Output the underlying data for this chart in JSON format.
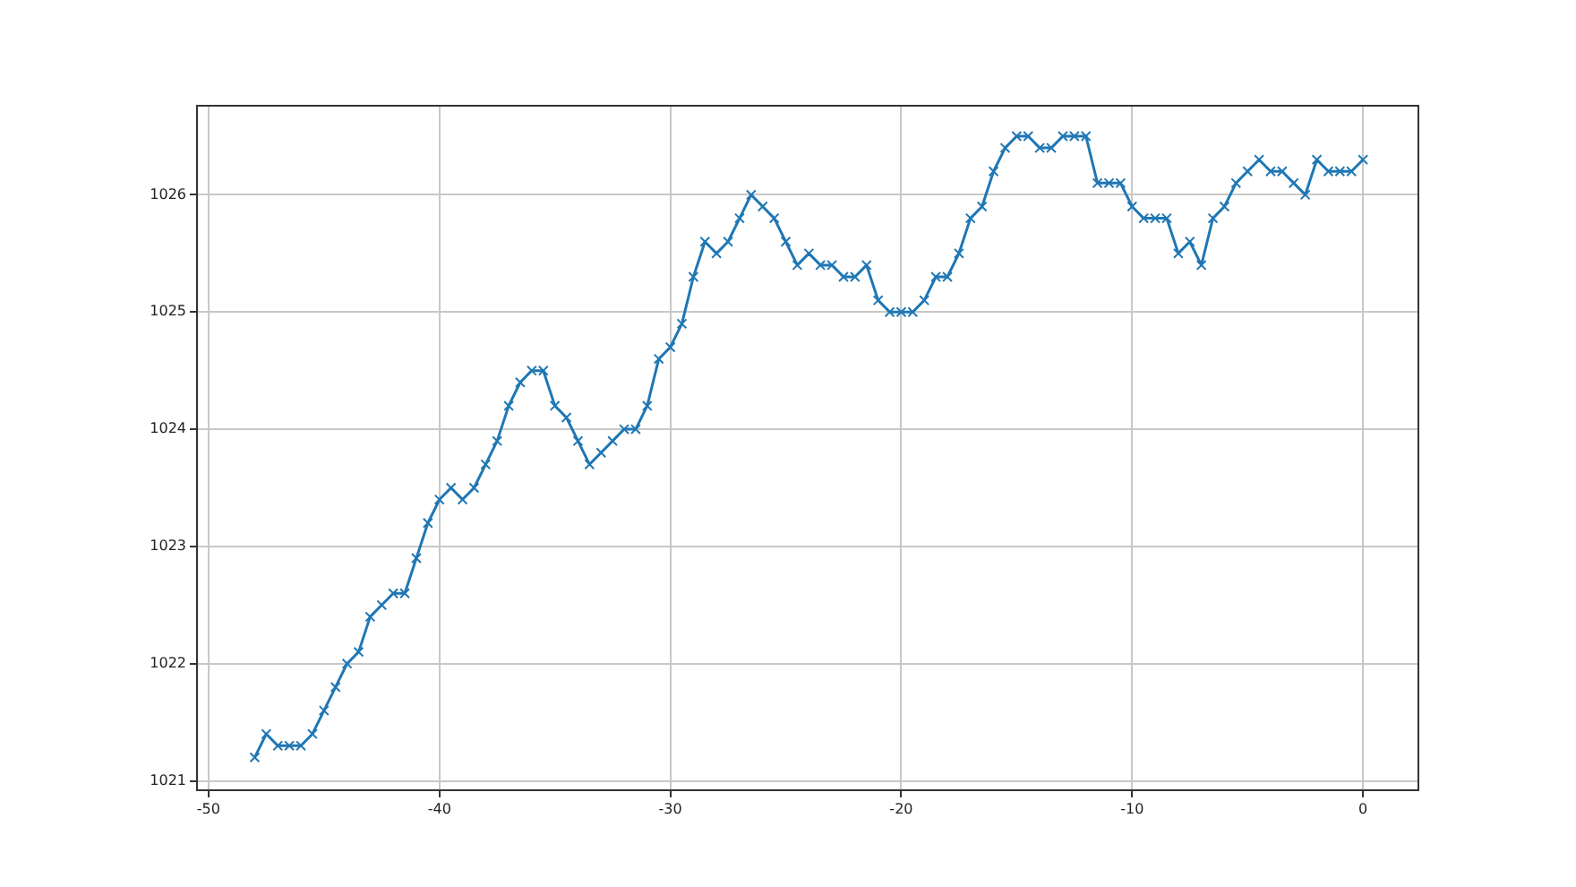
{
  "chart_data": {
    "type": "line",
    "marker": "cross",
    "grid": true,
    "legend": false,
    "xlim": [
      -50.5,
      2.4
    ],
    "ylim": [
      1020.92,
      1026.76
    ],
    "xticks": [
      -50,
      -40,
      -30,
      -20,
      -10,
      0
    ],
    "yticks": [
      1021,
      1022,
      1023,
      1024,
      1025,
      1026
    ],
    "series": [
      {
        "color": "#1f77b4",
        "x": [
          -48,
          -47.5,
          -47,
          -46.5,
          -46,
          -45.5,
          -45,
          -44.5,
          -44,
          -43.5,
          -43,
          -42.5,
          -42,
          -41.5,
          -41,
          -40.5,
          -40,
          -39.5,
          -39,
          -38.5,
          -38,
          -37.5,
          -37,
          -36.5,
          -36,
          -35.5,
          -35,
          -34.5,
          -34,
          -33.5,
          -33,
          -32.5,
          -32,
          -31.5,
          -31,
          -30.5,
          -30,
          -29.5,
          -29,
          -28.5,
          -28,
          -27.5,
          -27,
          -26.5,
          -26,
          -25.5,
          -25,
          -24.5,
          -24,
          -23.5,
          -23,
          -22.5,
          -22,
          -21.5,
          -21,
          -20.5,
          -20,
          -19.5,
          -19,
          -18.5,
          -18,
          -17.5,
          -17,
          -16.5,
          -16,
          -15.5,
          -15,
          -14.5,
          -14,
          -13.5,
          -13,
          -12.5,
          -12,
          -11.5,
          -11,
          -10.5,
          -10,
          -9.5,
          -9,
          -8.5,
          -8,
          -7.5,
          -7,
          -6.5,
          -6,
          -5.5,
          -5,
          -4.5,
          -4,
          -3.5,
          -3,
          -2.5,
          -2,
          -1.5,
          -1,
          -0.5,
          0
        ],
        "values": [
          1021.2,
          1021.4,
          1021.3,
          1021.3,
          1021.3,
          1021.4,
          1021.6,
          1021.8,
          1022.0,
          1022.1,
          1022.4,
          1022.5,
          1022.6,
          1022.6,
          1022.9,
          1023.2,
          1023.4,
          1023.5,
          1023.4,
          1023.5,
          1023.7,
          1023.9,
          1024.2,
          1024.4,
          1024.5,
          1024.5,
          1024.2,
          1024.1,
          1023.9,
          1023.7,
          1023.8,
          1023.9,
          1024.0,
          1024.0,
          1024.2,
          1024.6,
          1024.7,
          1024.9,
          1025.3,
          1025.6,
          1025.5,
          1025.6,
          1025.8,
          1026.0,
          1025.9,
          1025.8,
          1025.6,
          1025.4,
          1025.5,
          1025.4,
          1025.4,
          1025.3,
          1025.3,
          1025.4,
          1025.1,
          1025.0,
          1025.0,
          1025.0,
          1025.1,
          1025.3,
          1025.3,
          1025.5,
          1025.8,
          1025.9,
          1026.2,
          1026.4,
          1026.5,
          1026.5,
          1026.4,
          1026.4,
          1026.5,
          1026.5,
          1026.5,
          1026.1,
          1026.1,
          1026.1,
          1025.9,
          1025.8,
          1025.8,
          1025.8,
          1025.5,
          1025.6,
          1025.4,
          1025.8,
          1025.9,
          1026.1,
          1026.2,
          1026.3,
          1026.2,
          1026.2,
          1026.1,
          1026.0,
          1026.3,
          1026.2,
          1026.2,
          1026.2,
          1026.3
        ]
      }
    ]
  }
}
